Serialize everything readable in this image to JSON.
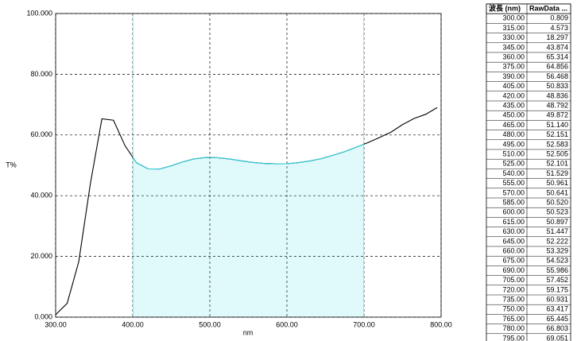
{
  "chart_data": {
    "type": "line",
    "x_label": "nm",
    "y_label": "T%",
    "x": [
      300,
      315,
      330,
      345,
      360,
      375,
      390,
      405,
      420,
      435,
      450,
      465,
      480,
      495,
      510,
      525,
      540,
      555,
      570,
      585,
      600,
      615,
      630,
      645,
      660,
      675,
      690,
      705,
      720,
      735,
      750,
      765,
      780,
      795
    ],
    "series": [
      {
        "color": "#000000",
        "values": [
          0.809,
          4.573,
          18.297,
          43.874,
          65.314,
          64.856,
          56.468,
          50.833,
          48.836,
          48.792,
          49.872,
          51.14,
          52.151,
          52.583,
          52.505,
          52.101,
          51.529,
          50.961,
          50.641,
          50.52,
          50.523,
          50.897,
          51.447,
          52.222,
          53.329,
          54.523,
          55.986,
          57.452,
          59.175,
          60.931,
          63.417,
          65.445,
          66.803,
          69.051
        ]
      }
    ],
    "shade_x": [
      400,
      700
    ],
    "shade_color": "#2fd5e0",
    "xlim": [
      300,
      800
    ],
    "ylim": [
      0,
      100
    ],
    "xticks": [
      {
        "value": 300,
        "label": "300.00"
      },
      {
        "value": 400,
        "label": "400.00"
      },
      {
        "value": 500,
        "label": "500.00"
      },
      {
        "value": 600,
        "label": "600.00"
      },
      {
        "value": 700,
        "label": "700.00"
      },
      {
        "value": 800,
        "label": "800.00"
      }
    ],
    "yticks": [
      {
        "value": 0,
        "label": "0.000"
      },
      {
        "value": 20,
        "label": "20.000"
      },
      {
        "value": 40,
        "label": "40.000"
      },
      {
        "value": 60,
        "label": "60.000"
      },
      {
        "value": 80,
        "label": "80.000"
      },
      {
        "value": 100,
        "label": "100.000"
      }
    ],
    "grid": true
  },
  "table": {
    "header": [
      "波長 (nm)",
      "RawData ..."
    ],
    "rows": [
      [
        "300.00",
        "0.809"
      ],
      [
        "315.00",
        "4.573"
      ],
      [
        "330.00",
        "18.297"
      ],
      [
        "345.00",
        "43.874"
      ],
      [
        "360.00",
        "65.314"
      ],
      [
        "375.00",
        "64.856"
      ],
      [
        "390.00",
        "56.468"
      ],
      [
        "405.00",
        "50.833"
      ],
      [
        "420.00",
        "48.836"
      ],
      [
        "435.00",
        "48.792"
      ],
      [
        "450.00",
        "49.872"
      ],
      [
        "465.00",
        "51.140"
      ],
      [
        "480.00",
        "52.151"
      ],
      [
        "495.00",
        "52.583"
      ],
      [
        "510.00",
        "52.505"
      ],
      [
        "525.00",
        "52.101"
      ],
      [
        "540.00",
        "51.529"
      ],
      [
        "555.00",
        "50.961"
      ],
      [
        "570.00",
        "50.641"
      ],
      [
        "585.00",
        "50.520"
      ],
      [
        "600.00",
        "50.523"
      ],
      [
        "615.00",
        "50.897"
      ],
      [
        "630.00",
        "51.447"
      ],
      [
        "645.00",
        "52.222"
      ],
      [
        "660.00",
        "53.329"
      ],
      [
        "675.00",
        "54.523"
      ],
      [
        "690.00",
        "55.986"
      ],
      [
        "705.00",
        "57.452"
      ],
      [
        "720.00",
        "59.175"
      ],
      [
        "735.00",
        "60.931"
      ],
      [
        "750.00",
        "63.417"
      ],
      [
        "765.00",
        "65.445"
      ],
      [
        "780.00",
        "66.803"
      ],
      [
        "795.00",
        "69.051"
      ]
    ]
  }
}
